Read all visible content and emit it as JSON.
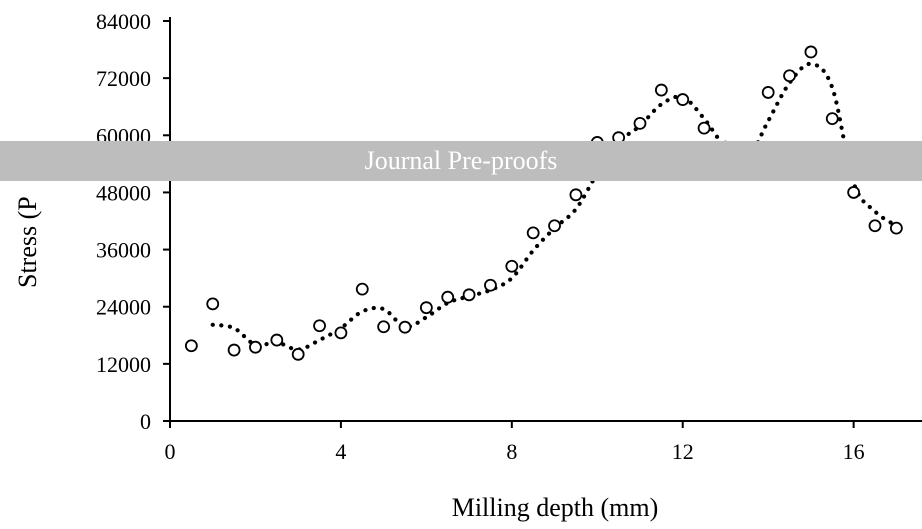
{
  "banner": {
    "text": "Journal Pre-proofs"
  },
  "chart_data": {
    "type": "scatter",
    "xlabel": "Milling depth (mm)",
    "ylabel": "Stress (P",
    "xlim": [
      0,
      17.6
    ],
    "ylim": [
      0,
      84000
    ],
    "xticks": [
      0,
      4,
      8,
      12,
      16
    ],
    "yticks": [
      0,
      12000,
      24000,
      36000,
      48000,
      60000,
      72000,
      84000
    ],
    "grid": false,
    "series": [
      {
        "style": "markers",
        "marker": "open-circle",
        "x": [
          0.5,
          1.0,
          1.5,
          2.0,
          2.5,
          3.0,
          3.5,
          4.0,
          4.5,
          5.0,
          5.5,
          6.0,
          6.5,
          7.0,
          7.5,
          8.0,
          8.5,
          9.0,
          9.5,
          10.0,
          10.5,
          11.0,
          11.5,
          12.0,
          12.5,
          13.0,
          14.0,
          14.5,
          15.0,
          15.5,
          16.0,
          16.5,
          17.0
        ],
        "y": [
          15800,
          24600,
          14900,
          15500,
          17000,
          14000,
          20000,
          18500,
          27700,
          19800,
          19700,
          23800,
          26000,
          26500,
          28500,
          32500,
          39500,
          41000,
          47500,
          58500,
          59500,
          62500,
          69500,
          67500,
          61500,
          57500,
          69000,
          72500,
          77500,
          63500,
          48000,
          41000,
          40500
        ]
      },
      {
        "style": "dotted-line",
        "x": [
          1.0,
          1.5,
          2.0,
          2.5,
          3.0,
          3.5,
          4.0,
          4.5,
          5.0,
          5.5,
          6.0,
          6.5,
          7.0,
          7.5,
          8.0,
          8.5,
          9.0,
          9.5,
          10.0,
          10.5,
          11.0,
          11.5,
          12.0,
          12.5,
          13.0,
          13.5,
          14.0,
          14.5,
          15.0,
          15.5,
          16.0,
          16.5,
          17.0
        ],
        "y": [
          20200,
          19500,
          16000,
          16500,
          15000,
          17000,
          19500,
          23000,
          23500,
          19800,
          21800,
          24800,
          26200,
          27500,
          30000,
          35800,
          40500,
          44500,
          52000,
          58500,
          62000,
          66500,
          68000,
          63500,
          57500,
          55000,
          63000,
          71000,
          75000,
          70000,
          50000,
          44000,
          41000
        ]
      }
    ]
  }
}
